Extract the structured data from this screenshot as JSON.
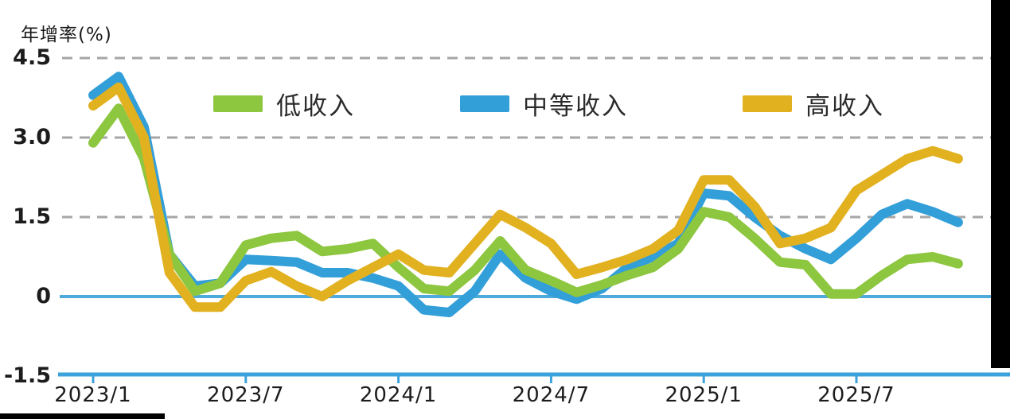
{
  "chart_data": {
    "type": "line",
    "title": "",
    "ylabel": "年增率(%)",
    "xlabel": "",
    "ylim": [
      -1.5,
      4.7
    ],
    "grid": "horizontal dashed gridlines at 1.5/3.0/4.5, solid light-blue zero line, solid blue x-axis",
    "legend_position": "top-inside",
    "x": [
      "2023/1",
      "2023/2",
      "2023/3",
      "2023/4",
      "2023/5",
      "2023/6",
      "2023/7",
      "2023/8",
      "2023/9",
      "2023/10",
      "2023/11",
      "2023/12",
      "2024/1",
      "2024/2",
      "2024/3",
      "2024/4",
      "2024/5",
      "2024/6",
      "2024/7",
      "2024/8",
      "2024/9",
      "2024/10",
      "2024/11",
      "2024/12",
      "2025/1",
      "2025/2",
      "2025/3",
      "2025/4",
      "2025/5",
      "2025/6",
      "2025/7",
      "2025/8",
      "2025/9",
      "2025/10",
      "2025/11"
    ],
    "series": [
      {
        "name": "低收入",
        "color": "#8DC63F",
        "values": [
          2.9,
          3.55,
          2.6,
          0.8,
          0.1,
          0.25,
          0.97,
          1.1,
          1.15,
          0.85,
          0.9,
          1.0,
          0.55,
          0.15,
          0.1,
          0.5,
          1.05,
          0.5,
          0.3,
          0.08,
          0.22,
          0.4,
          0.55,
          0.9,
          1.6,
          1.5,
          1.1,
          0.65,
          0.6,
          0.05,
          0.05,
          0.4,
          0.7,
          0.75,
          0.62
        ]
      },
      {
        "name": "中等收入",
        "color": "#339FD9",
        "values": [
          3.8,
          4.15,
          3.2,
          0.8,
          0.2,
          0.25,
          0.7,
          0.68,
          0.65,
          0.45,
          0.45,
          0.35,
          0.2,
          -0.25,
          -0.3,
          0.1,
          0.8,
          0.35,
          0.1,
          -0.05,
          0.15,
          0.55,
          0.75,
          1.0,
          1.95,
          1.9,
          1.5,
          1.15,
          0.9,
          0.7,
          1.1,
          1.55,
          1.75,
          1.6,
          1.4
        ]
      },
      {
        "name": "高收入",
        "color": "#E2B120",
        "values": [
          3.6,
          3.95,
          3.0,
          0.45,
          -0.2,
          -0.2,
          0.3,
          0.47,
          0.2,
          0.0,
          0.3,
          0.55,
          0.8,
          0.5,
          0.45,
          1.0,
          1.55,
          1.3,
          1.0,
          0.42,
          0.55,
          0.7,
          0.9,
          1.25,
          2.2,
          2.2,
          1.7,
          1.0,
          1.1,
          1.3,
          2.0,
          2.3,
          2.6,
          2.75,
          2.6
        ]
      }
    ],
    "yticks": [
      {
        "label": "4.5",
        "value": 4.5
      },
      {
        "label": "3.0",
        "value": 3.0
      },
      {
        "label": "1.5",
        "value": 1.5
      },
      {
        "label": "0",
        "value": 0
      },
      {
        "label": "-1.5",
        "value": -1.5
      }
    ],
    "xticks": [
      {
        "label": "2023/1",
        "month_index": 0
      },
      {
        "label": "2023/7",
        "month_index": 6
      },
      {
        "label": "2024/1",
        "month_index": 12
      },
      {
        "label": "2024/7",
        "month_index": 18
      },
      {
        "label": "2025/1",
        "month_index": 24
      },
      {
        "label": "2025/7",
        "month_index": 30
      }
    ],
    "colors": {
      "gridline": "#A6A6A6",
      "zero_line": "#4FAADC",
      "x_axis": "#3BA2DC",
      "tick_text": "#1C1C1C"
    }
  }
}
